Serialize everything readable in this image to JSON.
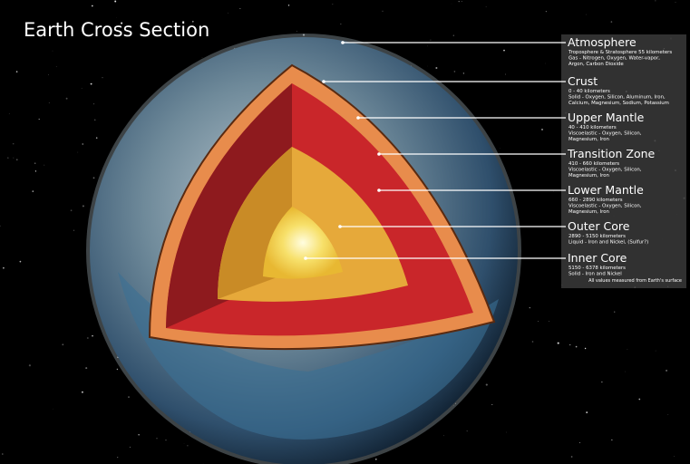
{
  "header": {
    "title": "Earth Cross Section"
  },
  "layers": [
    {
      "name": "Atmosphere",
      "lines": [
        "Troposphere & Stratosphere 55 kilometers",
        "Gas - Nitrogen, Oxygen, Water-vapor,",
        "Argon, Carbon Dioxide"
      ]
    },
    {
      "name": "Crust",
      "lines": [
        "0 - 40 kilometers",
        "Solid - Oxygen, Silicon, Aluminum, Iron,",
        "Calcium, Magnesium, Sodium, Potassium"
      ]
    },
    {
      "name": "Upper Mantle",
      "lines": [
        "40 - 410 kilometers",
        "Viscoelastic - Oxygen, Silicon,",
        "Magnesium, Iron"
      ]
    },
    {
      "name": "Transition Zone",
      "lines": [
        "410 - 660 kilometers",
        "Viscoelastic - Oxygen, Silicon,",
        "Magnesium, Iron"
      ]
    },
    {
      "name": "Lower Mantle",
      "lines": [
        "660 - 2890 kilometers",
        "Viscoelastic - Oxygen, Silicon,",
        "Magnesium, Iron"
      ]
    },
    {
      "name": "Outer Core",
      "lines": [
        "2890 - 5150 kilometers",
        "Liquid - Iron and Nickel, (Sulfur?)"
      ]
    },
    {
      "name": "Inner Core",
      "lines": [
        "5150 - 6378 kilometers",
        "Solid - Iron and Nickel"
      ]
    }
  ],
  "footnote": "All values measured from Earth's surface"
}
